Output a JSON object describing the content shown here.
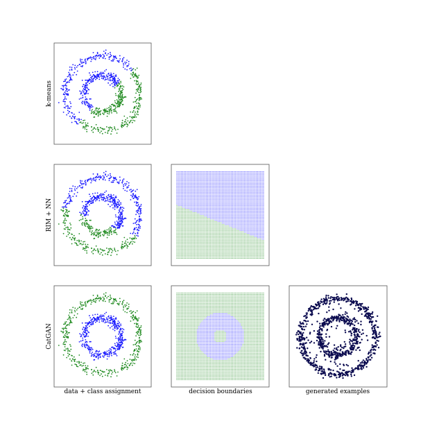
{
  "colors": {
    "class_a": "#1a1aff",
    "class_b": "#228b22",
    "generated": "#0b0b4f",
    "axes": "#555555"
  },
  "row_labels": [
    "k-means",
    "RIM + NN",
    "CatGAN"
  ],
  "column_labels": [
    "data + class assignment",
    "decision boundaries",
    "generated examples"
  ],
  "chart_data": [
    {
      "type": "scatter",
      "method": "k-means",
      "view": "data + class assignment",
      "data": "two concentric rings",
      "outer_radius": 1.0,
      "inner_radius": 0.5,
      "xlim": [
        -1.3,
        1.3
      ],
      "ylim": [
        -1.3,
        1.3
      ],
      "assignment": "split by a diagonal line (upper-left vs lower-right)"
    },
    {
      "type": "scatter",
      "method": "RIM + NN",
      "view": "data + class assignment",
      "data": "two concentric rings",
      "outer_radius": 1.0,
      "inner_radius": 0.5,
      "xlim": [
        -1.3,
        1.3
      ],
      "ylim": [
        -1.3,
        1.3
      ],
      "assignment": "split by a tilted line (upper-right vs lower-left)"
    },
    {
      "type": "heatmap",
      "method": "RIM + NN",
      "view": "decision boundaries",
      "grid": [
        60,
        60
      ],
      "boundary": "linear, from left edge at y=0.28 to right edge at y=-0.70"
    },
    {
      "type": "scatter",
      "method": "CatGAN",
      "view": "data + class assignment",
      "data": "two concentric rings",
      "outer_radius": 1.0,
      "inner_radius": 0.5,
      "xlim": [
        -1.3,
        1.3
      ],
      "ylim": [
        -1.3,
        1.3
      ],
      "assignment": "outer ring vs inner ring"
    },
    {
      "type": "heatmap",
      "method": "CatGAN",
      "view": "decision boundaries",
      "grid": [
        60,
        60
      ],
      "boundary": "annulus of radius 0.18 to 0.66 vs rest"
    },
    {
      "type": "scatter",
      "method": "CatGAN",
      "view": "generated examples",
      "data": "generated samples concentrated on the two rings"
    }
  ]
}
